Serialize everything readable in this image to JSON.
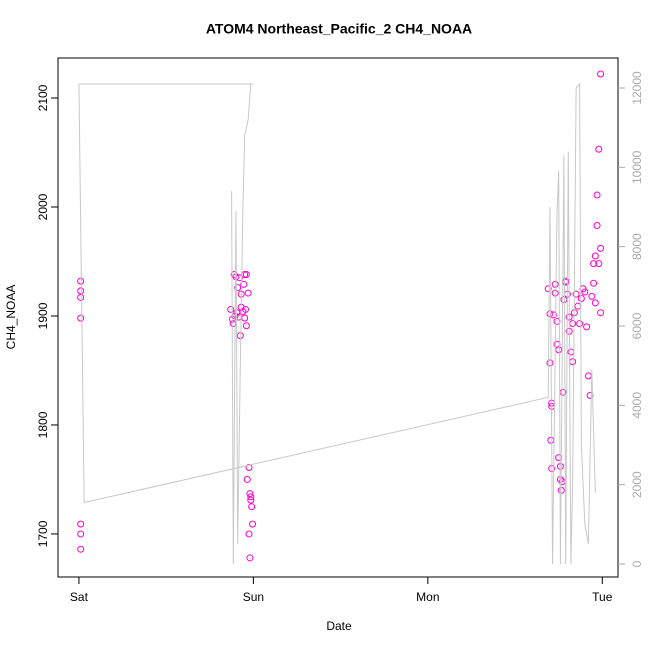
{
  "chart_data": {
    "type": "scatter",
    "title": "ATOM4 Northeast_Pacific_2 CH4_NOAA",
    "xlabel": "Date",
    "ylabel": "CH4_NOAA",
    "xlim": [
      -0.12,
      3.09
    ],
    "ylim": [
      1660.5,
      2136.7
    ],
    "y2lim": [
      -328,
      12756
    ],
    "xticks": [
      {
        "value": 0,
        "label": "Sat"
      },
      {
        "value": 1,
        "label": "Sun"
      },
      {
        "value": 2,
        "label": "Mon"
      },
      {
        "value": 3,
        "label": "Tue"
      }
    ],
    "yticks": [
      1700,
      1800,
      1900,
      2000,
      2100
    ],
    "y2ticks": [
      0,
      2000,
      4000,
      6000,
      8000,
      10000,
      12000
    ],
    "series": [
      {
        "color": "#ff00cc",
        "x": [
          0.01,
          0.01,
          0.01,
          0.01,
          0.01,
          0.01,
          0.01,
          0.89,
          0.9,
          0.91,
          0.92,
          0.93,
          0.95,
          0.96,
          0.87,
          0.88,
          0.885,
          0.895,
          0.905,
          0.915,
          0.925,
          0.93,
          0.94,
          0.95,
          0.955,
          0.96,
          0.945,
          0.97,
          0.965,
          0.975,
          0.98,
          0.985,
          0.99,
          0.975,
          0.995,
          0.98,
          0.985,
          2.69,
          2.7,
          2.7,
          2.71,
          2.71,
          2.705,
          2.71,
          2.72,
          2.73,
          2.73,
          2.74,
          2.74,
          2.75,
          2.75,
          2.76,
          2.76,
          2.77,
          2.765,
          2.775,
          2.78,
          2.79,
          2.79,
          2.8,
          2.81,
          2.81,
          2.82,
          2.83,
          2.83,
          2.84,
          2.85,
          2.86,
          2.87,
          2.88,
          2.89,
          2.9,
          2.91,
          2.92,
          2.93,
          2.94,
          2.95,
          2.96,
          2.97,
          2.97,
          2.98,
          2.99,
          2.99,
          2.98,
          2.99,
          2.96,
          2.95
        ],
        "values": [
          1932,
          1923,
          1917,
          1898,
          1709,
          1700,
          1686,
          1938,
          1936,
          1926,
          1935,
          1920,
          1938,
          1938,
          1906,
          1897,
          1893,
          1900,
          1903,
          1899,
          1882,
          1908,
          1904,
          1898,
          1906,
          1891,
          1929,
          1921,
          1750,
          1761,
          1737,
          1734,
          1725,
          1700,
          1709,
          1678,
          1731,
          1925,
          1902,
          1857,
          1820,
          1817,
          1786,
          1760,
          1901,
          1929,
          1921,
          1895,
          1874,
          1869,
          1770,
          1762,
          1750,
          1748,
          1740,
          1830,
          1915,
          1932,
          1931,
          1920,
          1899,
          1886,
          1867,
          1858,
          1893,
          1903,
          1920,
          1909,
          1893,
          1916,
          1925,
          1922,
          1890,
          1845,
          1827,
          1918,
          1948,
          1955,
          1983,
          2011,
          2053,
          2122,
          1962,
          1948,
          1903,
          1912,
          1930
        ]
      },
      {
        "color": "#c8c8c8",
        "axis": "y2",
        "x": [
          0.875,
          0.885,
          0.9,
          0.91,
          0.925,
          0.94,
          0.95,
          0.97,
          0.985,
          1.0,
          0.0,
          0.03,
          2.69,
          2.7,
          2.715,
          2.74,
          2.75,
          2.76,
          2.78,
          2.79,
          2.805,
          2.82,
          2.83,
          2.85,
          2.87,
          2.88,
          2.9,
          2.92,
          2.94,
          2.96
        ],
        "values": [
          9400,
          0,
          8900,
          500,
          5000,
          9000,
          10800,
          11200,
          12100,
          12100,
          12100,
          1550,
          4200,
          9000,
          0,
          8800,
          9900,
          0,
          10300,
          0,
          10400,
          0,
          2000,
          12000,
          12100,
          3000,
          1000,
          500,
          4900,
          1800
        ]
      }
    ]
  }
}
